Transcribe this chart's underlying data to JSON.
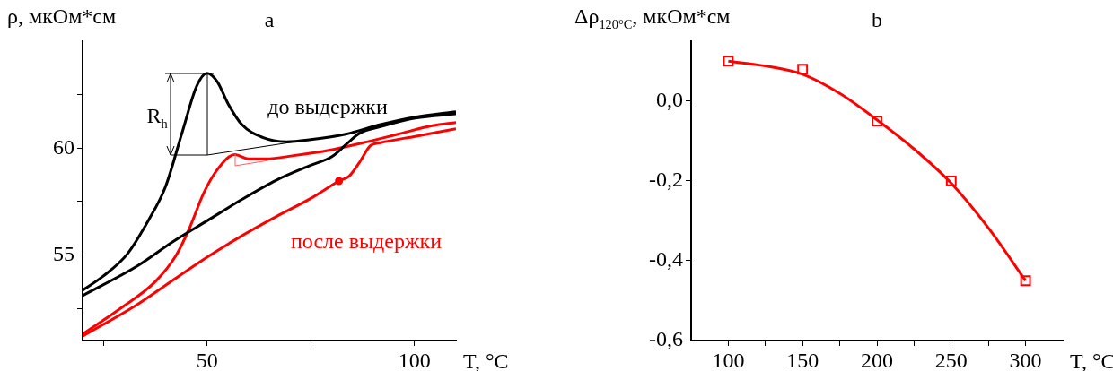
{
  "chart_data": [
    {
      "type": "line",
      "title": "a",
      "xlabel": "T, °C",
      "ylabel": "ρ, мкОм*см",
      "xlim": [
        20,
        110
      ],
      "xticks": [
        {
          "value": 25,
          "label": null
        },
        50,
        {
          "value": 75,
          "label": null
        },
        100
      ],
      "ylim": [
        51,
        65
      ],
      "yticks": [
        {
          "value": 52.5,
          "label": null
        },
        55,
        {
          "value": 57.5,
          "label": null
        },
        60,
        {
          "value": 62.5,
          "label": null
        }
      ],
      "series": [
        {
          "name": "до выдержки",
          "color": "#000000",
          "x": [
            20,
            24.9,
            30.8,
            35.8,
            40,
            44.1,
            47.5,
            50,
            52.5,
            55,
            58.4,
            63.4,
            69.2,
            75,
            83.4,
            91.8,
            100.2,
            110
          ],
          "values": [
            53.35,
            54.0,
            55.05,
            56.6,
            58.2,
            60.8,
            62.9,
            63.5,
            63.1,
            62.1,
            61.1,
            60.5,
            60.3,
            60.4,
            60.65,
            61.1,
            61.45,
            61.7
          ]
        },
        {
          "color": "#000000",
          "x": [
            20,
            33.3,
            41.6,
            50,
            58.4,
            66.7,
            75,
            80.1,
            83.4,
            86.8,
            91.8,
            100.2,
            110
          ],
          "values": [
            53.1,
            54.5,
            55.6,
            56.6,
            57.6,
            58.5,
            59.2,
            59.6,
            60.15,
            60.7,
            61.0,
            61.4,
            61.6
          ]
        },
        {
          "color": "#ff0000",
          "x": [
            20,
            29.1,
            37.5,
            42.5,
            45.8,
            49.2,
            52.5,
            56.7,
            60,
            64.2,
            70.9,
            79.3,
            87.6,
            96,
            104.3,
            110
          ],
          "values": [
            51.3,
            52.5,
            53.75,
            54.97,
            56.27,
            57.9,
            59.0,
            59.7,
            59.5,
            59.5,
            59.65,
            59.9,
            60.25,
            60.65,
            61.05,
            61.2
          ]
        },
        {
          "name": "после выдержки",
          "color": "#ff0000",
          "x": [
            20,
            33.3,
            41.6,
            50,
            58.4,
            66.7,
            75,
            81.8,
            84.3,
            86.8,
            89.3,
            91.8,
            100.2,
            110
          ],
          "values": [
            51.2,
            52.7,
            53.8,
            54.9,
            55.9,
            56.8,
            57.65,
            58.46,
            58.7,
            59.35,
            60.1,
            60.25,
            60.55,
            60.9
          ]
        },
        {
          "type": "scatter",
          "marker": "circle",
          "color": "#ff0000",
          "x": [
            81.8
          ],
          "values": [
            58.46
          ]
        }
      ],
      "annotations": [
        "R$_{h}$"
      ]
    },
    {
      "type": "scatter",
      "title": "b",
      "xlabel": "T, °C",
      "ylabel": "Δρ$_{120°C}$, мкОм*см",
      "xlim": [
        75,
        325
      ],
      "xticks": [
        100,
        {
          "value": 125,
          "label": null
        },
        150,
        {
          "value": 175,
          "label": null
        },
        200,
        {
          "value": 225,
          "label": null
        },
        250,
        {
          "value": 275,
          "label": null
        },
        300
      ],
      "ylim": [
        -0.6,
        0.15
      ],
      "yticks": [
        {
          "value": -0.6,
          "label": "-0,6"
        },
        {
          "value": -0.4,
          "label": "-0,4"
        },
        {
          "value": -0.2,
          "label": "-0,2"
        },
        {
          "value": 0,
          "label": "0,0"
        }
      ],
      "x": [
        100,
        150,
        200,
        250,
        300
      ],
      "series": [
        {
          "marker": "square",
          "color": "#ff0000",
          "values": [
            0.1,
            0.08,
            -0.05,
            -0.2,
            -0.45
          ]
        },
        {
          "type": "line",
          "color": "#ff0000",
          "x": [
            100,
            125,
            150,
            175,
            200,
            225,
            250,
            275,
            300
          ],
          "values": [
            0.1,
            0.088,
            0.067,
            0.019,
            -0.047,
            -0.12,
            -0.206,
            -0.318,
            -0.45
          ]
        }
      ]
    }
  ]
}
